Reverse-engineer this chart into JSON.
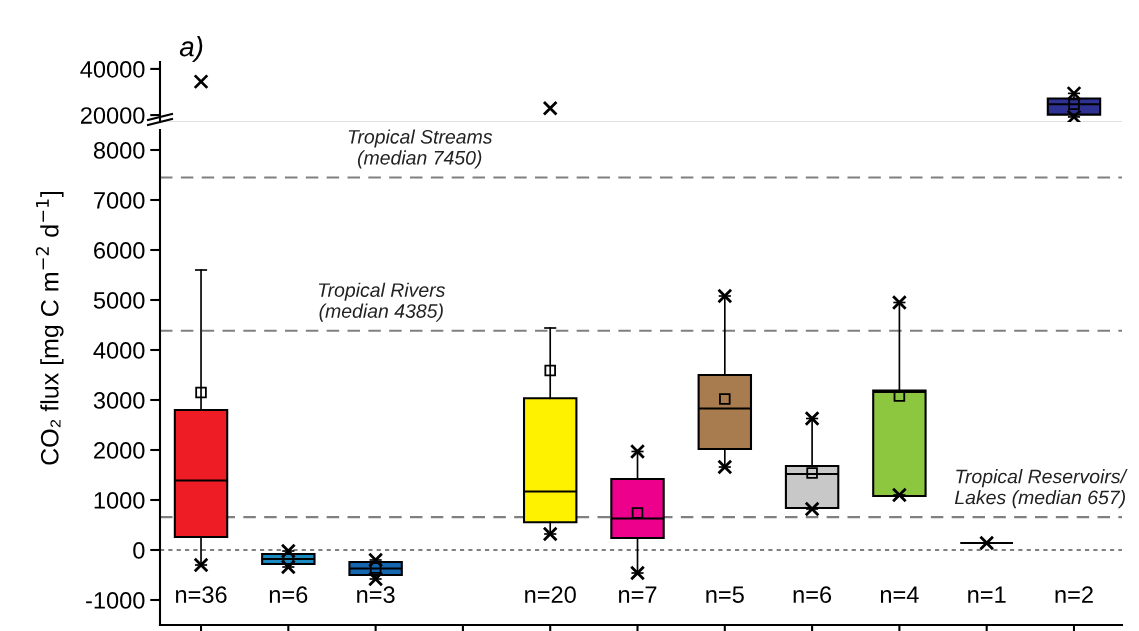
{
  "chart_data": [
    {
      "type": "box",
      "title": "a)",
      "categories": [
        null,
        null,
        null,
        null,
        null,
        null,
        null,
        null,
        null,
        null,
        null
      ],
      "ylim": [
        17000,
        43000
      ],
      "yticks": [
        20000,
        40000
      ],
      "tick_labels": "y",
      "boxes": [
        null,
        null,
        null,
        null,
        null,
        null,
        null,
        null,
        null,
        null,
        {
          "low": 19200,
          "q1": 20200,
          "median": 24700,
          "q3": 27200,
          "high": 29400,
          "mean": 24700,
          "outliers": [
            29400,
            19200
          ]
        }
      ],
      "colors": [
        null,
        null,
        null,
        null,
        null,
        null,
        null,
        null,
        null,
        null,
        "#2e3192"
      ],
      "series": [
        {
          "type": "scatter",
          "marker": "cross",
          "color": "#000000",
          "values": [
            34500,
            null,
            null,
            null,
            23000,
            null,
            null,
            null,
            null,
            null,
            null
          ]
        }
      ]
    },
    {
      "type": "box",
      "categories": [
        "n=36",
        "n=6",
        "n=3",
        null,
        "n=20",
        "n=7",
        "n=5",
        "n=6",
        "n=4",
        "n=1",
        "n=2"
      ],
      "ylim": [
        -1500,
        8400
      ],
      "yticks": [
        -1000,
        0,
        1000,
        2000,
        3000,
        4000,
        5000,
        6000,
        7000,
        8000
      ],
      "ylabel": "CO₂ flux [mg C m$^{−2}$ d$^{−1}$]",
      "boxes": [
        {
          "low": -300,
          "q1": 260,
          "median": 1390,
          "q3": 2800,
          "high": 5600,
          "mean": 3150,
          "outliers": [
            -300
          ]
        },
        {
          "low": -340,
          "q1": -280,
          "median": -180,
          "q3": -80,
          "high": -20,
          "mean": -180,
          "outliers": [
            -20,
            -340
          ]
        },
        {
          "low": -580,
          "q1": -500,
          "median": -370,
          "q3": -240,
          "high": -200,
          "mean": -360,
          "outliers": [
            -200,
            -580
          ]
        },
        null,
        {
          "low": 320,
          "q1": 555,
          "median": 1170,
          "q3": 3035,
          "high": 4440,
          "mean": 3590,
          "outliers": [
            320
          ]
        },
        {
          "low": -460,
          "q1": 240,
          "median": 630,
          "q3": 1420,
          "high": 1970,
          "mean": 740,
          "outliers": [
            1970,
            -460
          ]
        },
        {
          "low": 1660,
          "q1": 2020,
          "median": 2830,
          "q3": 3500,
          "high": 5080,
          "mean": 3020,
          "outliers": [
            5080,
            1660
          ]
        },
        {
          "low": 820,
          "q1": 840,
          "median": 1520,
          "q3": 1680,
          "high": 2630,
          "mean": 1540,
          "outliers": [
            2630,
            820
          ]
        },
        {
          "low": 1100,
          "q1": 1080,
          "median": 3160,
          "q3": 3190,
          "high": 4950,
          "mean": 3080,
          "outliers": [
            4950,
            1100
          ]
        },
        {
          "low": 140,
          "q1": 140,
          "median": 140,
          "q3": 140,
          "high": 140,
          "outliers": [
            140
          ]
        },
        null
      ],
      "colors": [
        "#ee1c24",
        "#1a8ac0",
        "#1565b0",
        null,
        "#fff200",
        "#ec008c",
        "#a97c50",
        "#c8c8c8",
        "#8dc63f",
        null,
        null
      ],
      "ref_lines": [
        {
          "axis": "y",
          "value": 7450,
          "label": "Tropical Streams\n(median 7450)",
          "color": "#808080",
          "line_style": "dashed"
        },
        {
          "axis": "y",
          "value": 4385,
          "label": "Tropical Rivers\n(median 4385)",
          "color": "#808080",
          "line_style": "dashed"
        },
        {
          "axis": "y",
          "value": 657,
          "label": "Tropical Reservoirs/\nLakes (median 657)",
          "color": "#808080",
          "line_style": "dashed"
        },
        {
          "axis": "y",
          "value": 0,
          "color": "#808080",
          "line_style": "dotted"
        }
      ]
    }
  ]
}
